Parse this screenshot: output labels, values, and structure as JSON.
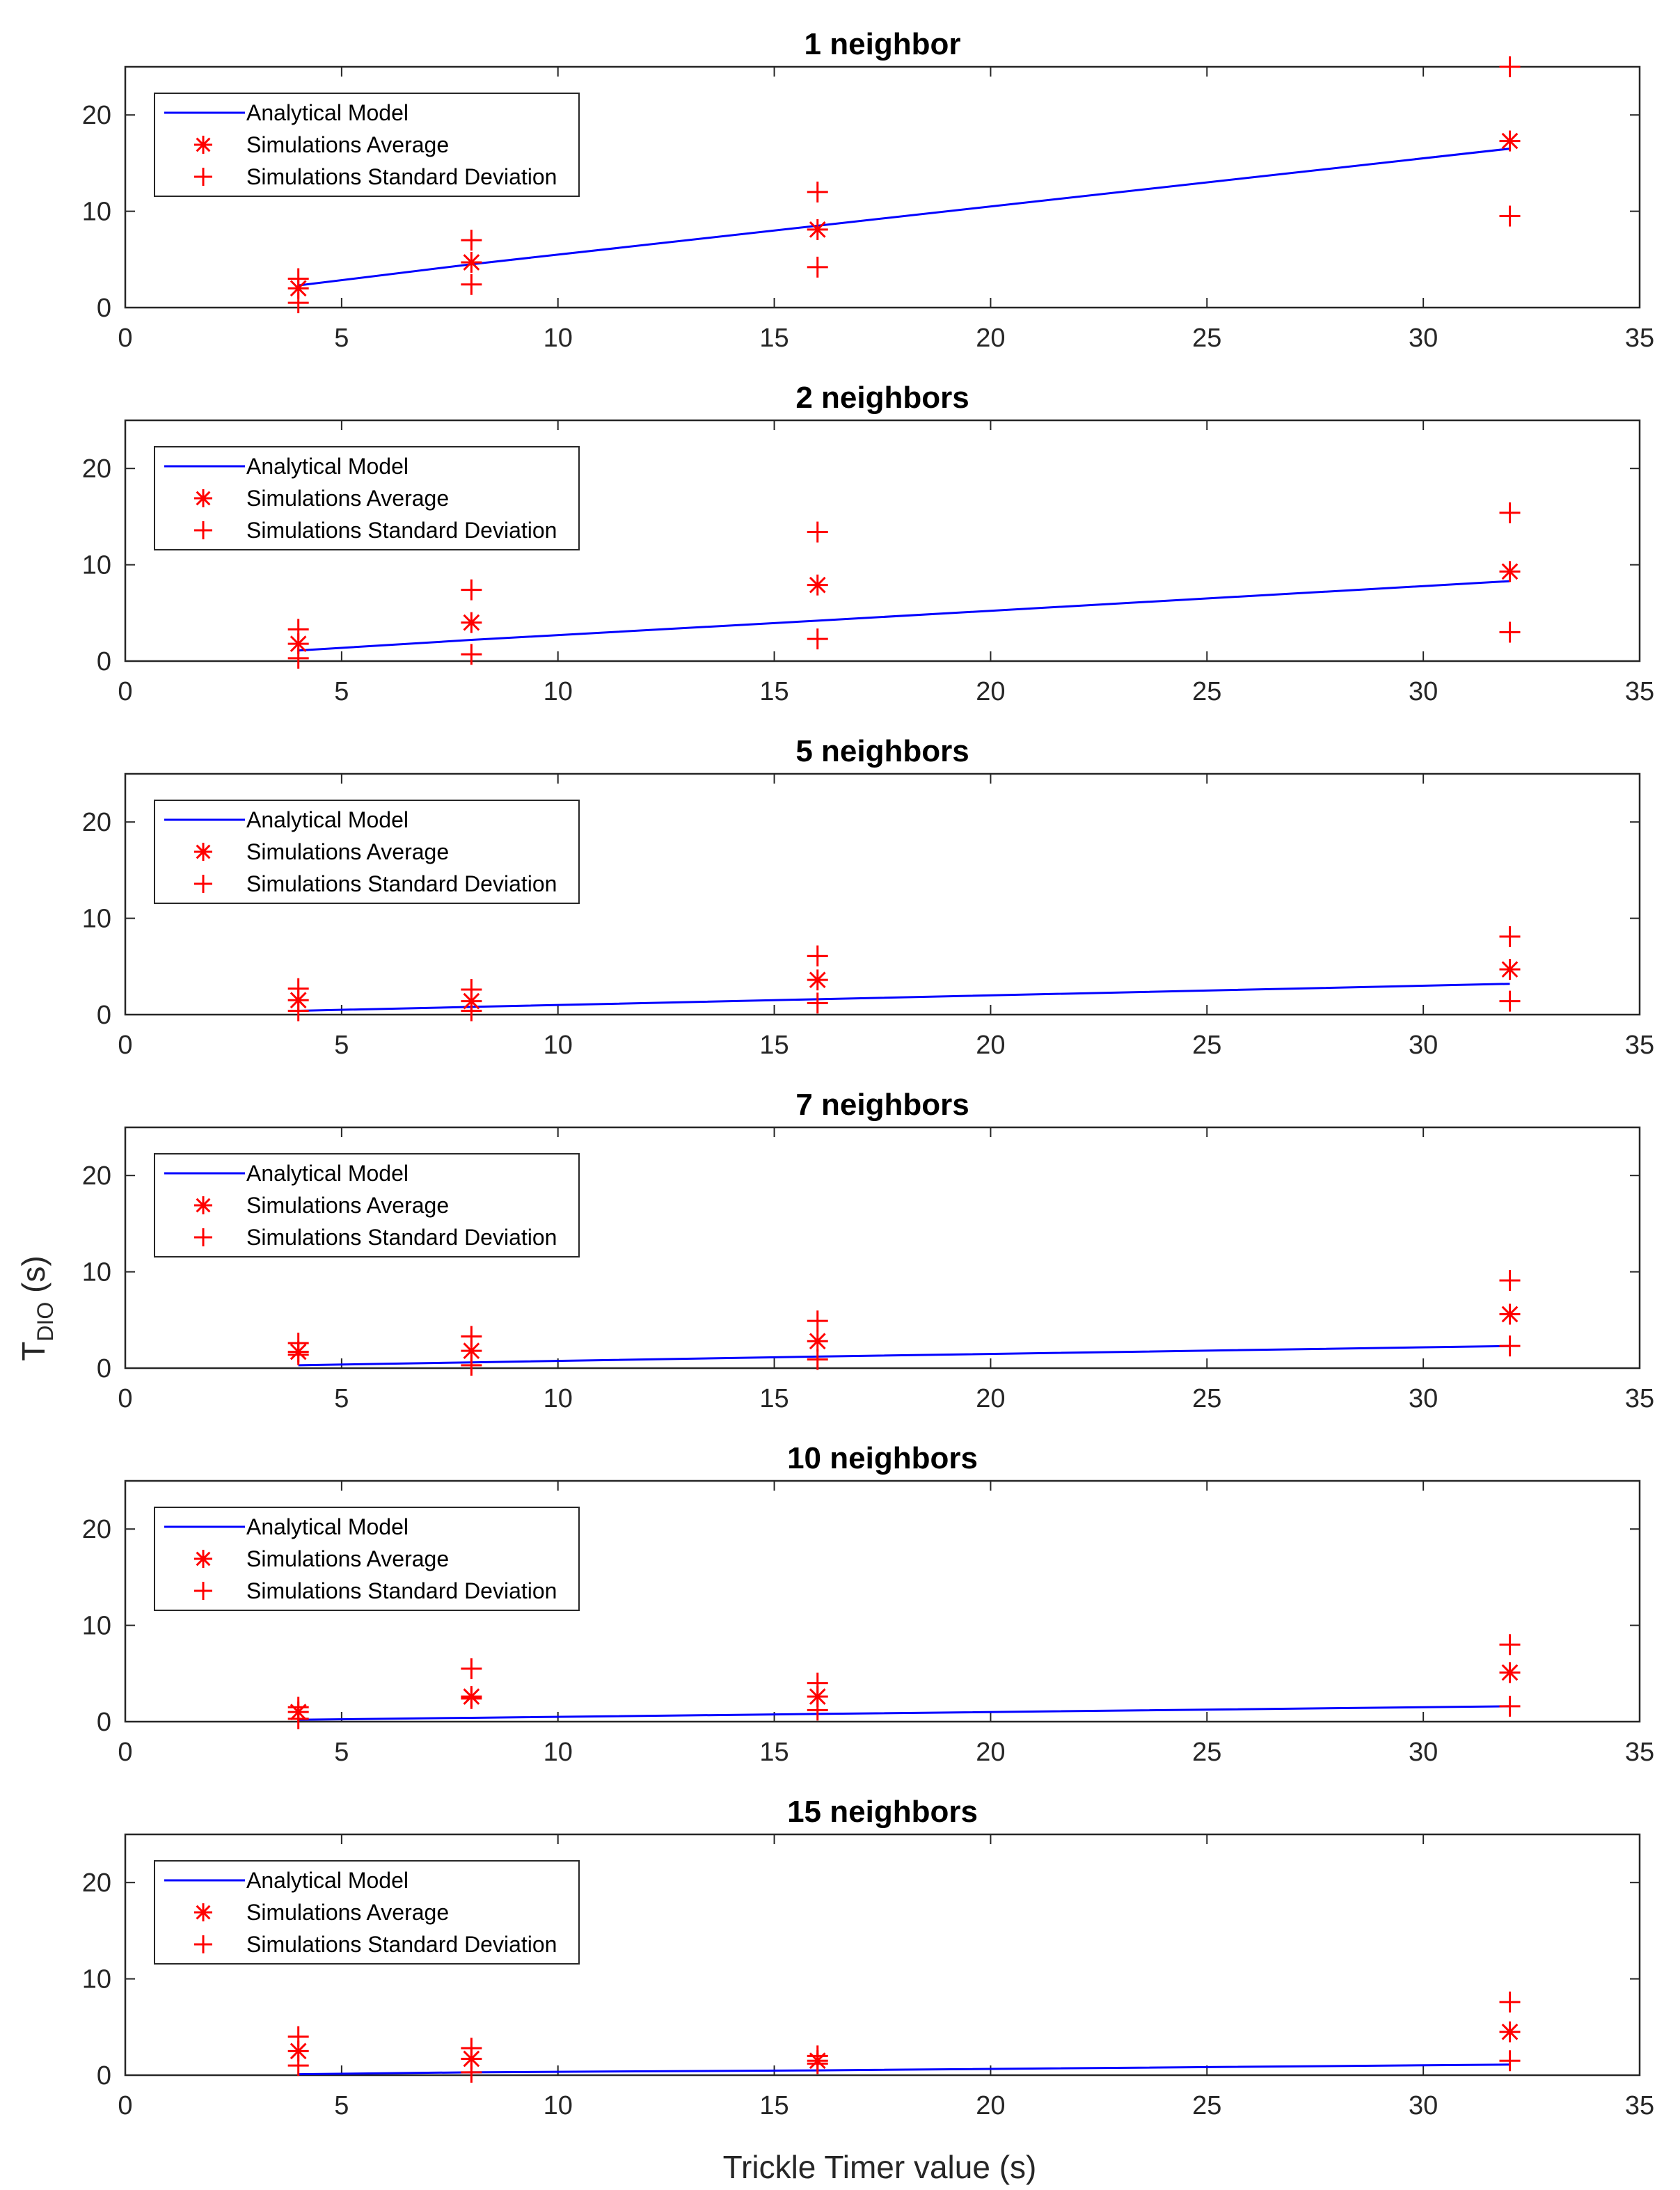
{
  "chart_data": {
    "type": "line",
    "figure": {
      "xlabel": "Trickle Timer value (s)",
      "ylabel_main": "T",
      "ylabel_sub": "DIO",
      "ylabel_suffix": " (s)"
    },
    "legend": {
      "entries": [
        "Analytical Model",
        "Simulations Average",
        "Simulations Standard Deviation"
      ],
      "placement": "top-left"
    },
    "colors": {
      "model": "#0000ff",
      "sim": "#ff0000"
    },
    "xlim": [
      0,
      35
    ],
    "ylim": [
      0,
      25
    ],
    "xticks": [
      0,
      5,
      10,
      15,
      20,
      25,
      30,
      35
    ],
    "yticks": [
      0,
      10,
      20
    ],
    "x": [
      4,
      8,
      16,
      32
    ],
    "panels": [
      {
        "title": "1 neighbor",
        "model": [
          2.3,
          4.5,
          8.5,
          16.5
        ],
        "average": [
          2.0,
          4.7,
          8.1,
          17.3
        ],
        "std_upper": [
          3.0,
          7.0,
          12.0,
          25.0
        ],
        "std_lower": [
          0.5,
          2.4,
          4.2,
          9.5
        ]
      },
      {
        "title": "2 neighbors",
        "model": [
          1.1,
          2.2,
          4.2,
          8.3
        ],
        "average": [
          1.8,
          4.0,
          7.9,
          9.3
        ],
        "std_upper": [
          3.3,
          7.4,
          13.4,
          15.4
        ],
        "std_lower": [
          0.3,
          0.7,
          2.3,
          3.0
        ]
      },
      {
        "title": "5 neighbors",
        "model": [
          0.4,
          0.8,
          1.6,
          3.2
        ],
        "average": [
          1.5,
          1.4,
          3.6,
          4.7
        ],
        "std_upper": [
          2.7,
          2.6,
          6.1,
          8.1
        ],
        "std_lower": [
          0.4,
          0.4,
          1.2,
          1.4
        ]
      },
      {
        "title": "7 neighbors",
        "model": [
          0.3,
          0.6,
          1.2,
          2.3
        ],
        "average": [
          1.7,
          1.8,
          2.8,
          5.6
        ],
        "std_upper": [
          2.6,
          3.3,
          4.9,
          9.1
        ],
        "std_lower": [
          1.4,
          0.3,
          0.9,
          2.3
        ]
      },
      {
        "title": "10 neighbors",
        "model": [
          0.2,
          0.4,
          0.8,
          1.6
        ],
        "average": [
          1.0,
          2.6,
          2.6,
          5.1
        ],
        "std_upper": [
          1.5,
          5.5,
          4.0,
          8.0
        ],
        "std_lower": [
          0.3,
          2.4,
          1.2,
          1.6
        ]
      },
      {
        "title": "15 neighbors",
        "model": [
          0.1,
          0.3,
          0.5,
          1.1
        ],
        "average": [
          2.5,
          1.7,
          1.5,
          4.5
        ],
        "std_upper": [
          4.0,
          2.8,
          2.0,
          7.6
        ],
        "std_lower": [
          1.0,
          0.3,
          1.2,
          1.5
        ]
      }
    ]
  }
}
